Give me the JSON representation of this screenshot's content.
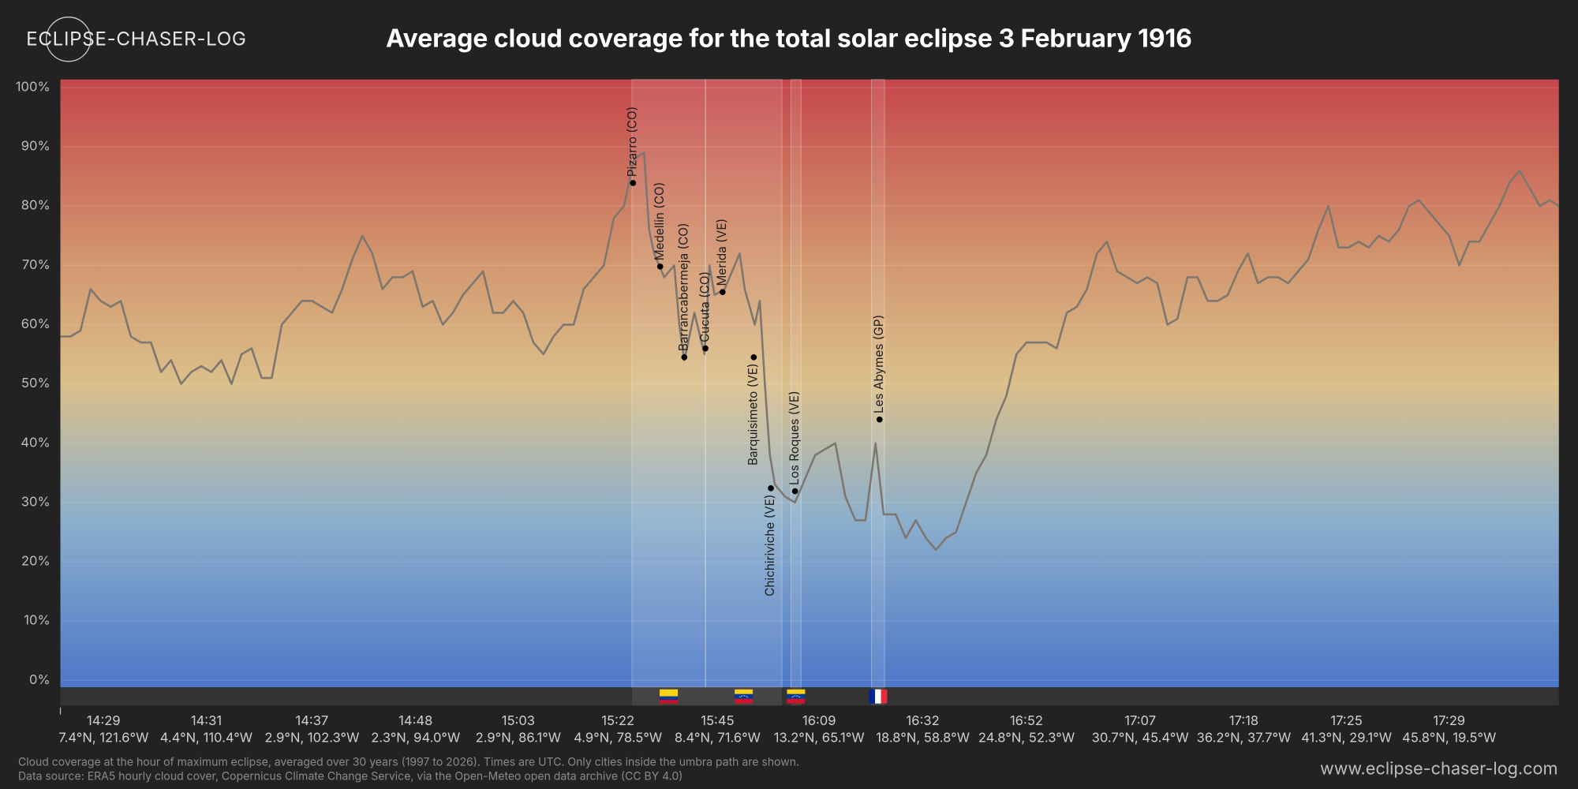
{
  "brand": "ECLIPSE-CHASER-LOG",
  "website": "www.eclipse-chaser-log.com",
  "footnotes": [
    "Cloud coverage at the hour of maximum eclipse, averaged over 30 years (1997 to 2026). Times are UTC. Only cities inside the umbra path are shown.",
    "Data source: ERA5 hourly cloud cover, Copernicus Climate Change Service, via the Open-Meteo open data archive (CC BY 4.0)"
  ],
  "chart_data": {
    "type": "line",
    "title": "Average cloud coverage for the total solar eclipse 3 February 1916",
    "color": "#7d776f",
    "grid": true,
    "x": [
      60,
      70,
      80,
      90,
      100,
      110,
      120,
      130,
      140,
      150,
      160,
      170,
      180,
      190,
      200,
      210,
      220,
      230,
      240,
      250,
      260,
      270,
      280,
      290,
      300,
      310,
      320,
      330,
      340,
      350,
      360,
      370,
      380,
      390,
      400,
      410,
      420,
      430,
      440,
      450,
      460,
      470,
      480,
      490,
      500,
      510,
      520,
      530,
      540,
      550,
      560,
      570,
      580,
      590,
      600,
      610,
      620,
      630,
      640,
      645,
      650,
      660,
      670,
      675,
      680,
      690,
      700,
      705,
      710,
      720,
      730,
      735,
      740,
      750,
      755,
      760,
      765,
      770,
      780,
      790,
      800,
      810,
      820,
      830,
      840,
      850,
      860,
      870,
      878,
      890,
      900,
      910,
      920,
      930,
      940,
      950,
      960,
      970,
      980,
      990,
      1000,
      1010,
      1020,
      1030,
      1040,
      1050,
      1060,
      1070,
      1080,
      1090,
      1100,
      1110,
      1120,
      1130,
      1140,
      1150,
      1160,
      1170,
      1180,
      1190,
      1200,
      1210,
      1220,
      1230,
      1240,
      1250,
      1260,
      1270,
      1280,
      1290,
      1300,
      1310,
      1320,
      1330,
      1340,
      1350,
      1360,
      1370,
      1380,
      1390,
      1400,
      1410,
      1420,
      1430,
      1440,
      1450,
      1460,
      1470,
      1480,
      1490,
      1500,
      1510,
      1520,
      1530,
      1540,
      1549
    ],
    "values": [
      58,
      58,
      59,
      66,
      64,
      63,
      64,
      58,
      57,
      57,
      52,
      54,
      50,
      52,
      53,
      52,
      54,
      50,
      55,
      56,
      51,
      51,
      60,
      62,
      64,
      64,
      63,
      62,
      66,
      71,
      75,
      72,
      66,
      68,
      68,
      69,
      63,
      64,
      60,
      62,
      65,
      67,
      69,
      62,
      62,
      64,
      62,
      57,
      55,
      58,
      60,
      60,
      66,
      68,
      70,
      78,
      80,
      88,
      89,
      76,
      72,
      68,
      70,
      60,
      54,
      62,
      55,
      70,
      65,
      66,
      70,
      72,
      66,
      60,
      64,
      50,
      38,
      33,
      31,
      30,
      34,
      38,
      39,
      40,
      31,
      27,
      27,
      40,
      28,
      28,
      24,
      27,
      24,
      22,
      24,
      25,
      30,
      35,
      38,
      44,
      48,
      55,
      57,
      57,
      57,
      56,
      62,
      63,
      66,
      72,
      74,
      69,
      68,
      67,
      68,
      67,
      60,
      61,
      68,
      68,
      64,
      64,
      65,
      69,
      72,
      67,
      68,
      68,
      67,
      69,
      71,
      76,
      80,
      73,
      73,
      74,
      73,
      75,
      74,
      76,
      80,
      81,
      79,
      77,
      75,
      70,
      74,
      74,
      77,
      80,
      84,
      86,
      83,
      80,
      81,
      80
    ],
    "xlim": [
      60,
      1549
    ],
    "ylim": [
      0,
      100
    ],
    "yticks": [
      {
        "value": 0,
        "label": "0%"
      },
      {
        "value": 10,
        "label": "10%"
      },
      {
        "value": 20,
        "label": "20%"
      },
      {
        "value": 30,
        "label": "30%"
      },
      {
        "value": 40,
        "label": "40%"
      },
      {
        "value": 50,
        "label": "50%"
      },
      {
        "value": 60,
        "label": "60%"
      },
      {
        "value": 70,
        "label": "70%"
      },
      {
        "value": 80,
        "label": "80%"
      },
      {
        "value": 90,
        "label": "90%"
      },
      {
        "value": 100,
        "label": "100%"
      }
    ],
    "xticks": [
      {
        "value": 103,
        "label": "14:29"
      },
      {
        "value": 205,
        "label": "14:31"
      },
      {
        "value": 310,
        "label": "14:37"
      },
      {
        "value": 413,
        "label": "14:48"
      },
      {
        "value": 515,
        "label": "15:03"
      },
      {
        "value": 614,
        "label": "15:22"
      },
      {
        "value": 713,
        "label": "15:45"
      },
      {
        "value": 814,
        "label": "16:09"
      },
      {
        "value": 917,
        "label": "16:32"
      },
      {
        "value": 1020,
        "label": "16:52"
      },
      {
        "value": 1133,
        "label": "17:07"
      },
      {
        "value": 1236,
        "label": "17:18"
      },
      {
        "value": 1338,
        "label": "17:25"
      },
      {
        "value": 1440,
        "label": "17:29"
      }
    ],
    "xtick_coordinates": [
      "7.4°N, 121.6°W",
      "4.4°N, 110.4°W",
      "2.9°N, 102.3°W",
      "2.3°N, 94.0°W",
      "2.9°N, 86.1°W",
      "4.9°N, 78.5°W",
      "8.4°N, 71.6°W",
      "13.2°N, 65.1°W",
      "18.8°N, 58.8°W",
      "24.8°N, 52.3°W",
      "30.7°N, 45.4°W",
      "36.2°N, 37.7°W",
      "41.3°N, 29.1°W",
      "45.8°N, 19.5°W"
    ],
    "regions": [
      {
        "x0": 628,
        "x1": 701,
        "flag": "co"
      },
      {
        "x0": 701,
        "x1": 777,
        "flag": "ve"
      },
      {
        "x0": 786,
        "x1": 796,
        "flag": "ve"
      },
      {
        "x0": 866,
        "x1": 879,
        "flag": "fr"
      }
    ],
    "cities": [
      {
        "name": "Pizarro (CO)",
        "x": 629,
        "y": 83.9,
        "label_position": "above"
      },
      {
        "name": "Medellin (CO)",
        "x": 656,
        "y": 69.8,
        "label_position": "above"
      },
      {
        "name": "Barrancabermeja (CO)",
        "x": 680,
        "y": 54.5,
        "label_position": "above"
      },
      {
        "name": "Cucuta (CO)",
        "x": 701,
        "y": 56,
        "label_position": "above"
      },
      {
        "name": "Merida (VE)",
        "x": 718,
        "y": 65.5,
        "label_position": "above"
      },
      {
        "name": "Barquisimeto (VE)",
        "x": 749,
        "y": 54.5,
        "label_position": "below"
      },
      {
        "name": "Chichiriviche (VE)",
        "x": 766,
        "y": 32.4,
        "label_position": "below"
      },
      {
        "name": "Los Roques (VE)",
        "x": 790,
        "y": 31.9,
        "label_position": "above"
      },
      {
        "name": "Les Abymes (GP)",
        "x": 874,
        "y": 44,
        "label_position": "above"
      }
    ]
  }
}
